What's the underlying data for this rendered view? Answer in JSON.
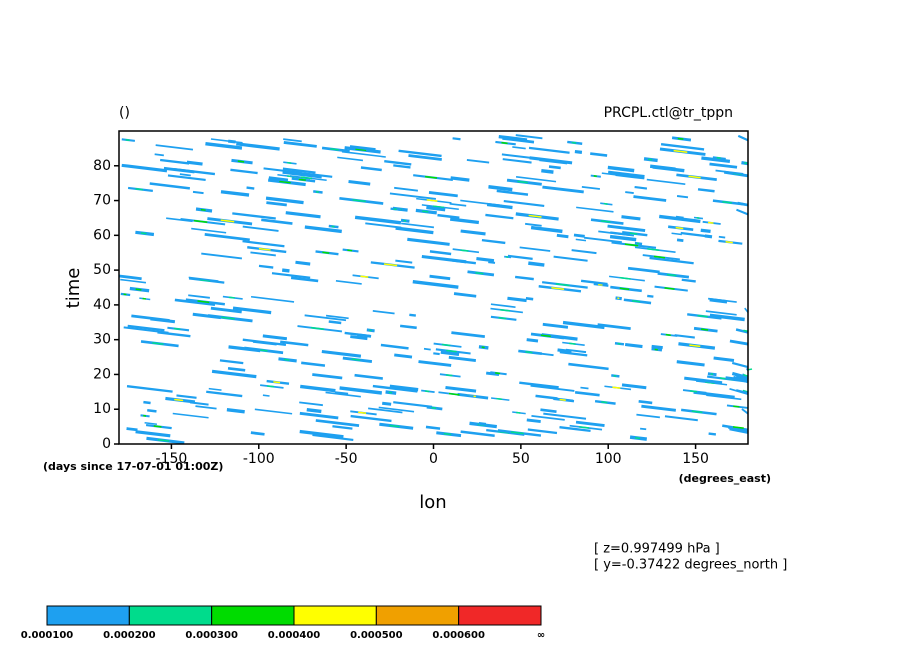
{
  "chart_data": {
    "type": "contourf",
    "title": "()",
    "subtitle": "PRCPL.ctl@tr_tppn",
    "x_label": "lon",
    "y_label": "time",
    "x_units": "(degrees_east)",
    "y_units": "(days since 17-07-01 01:00Z)",
    "annotations": [
      "[ z=0.997499 hPa ]",
      "[ y=-0.37422 degrees_north ]"
    ],
    "xlim": [
      -180,
      180
    ],
    "xticks": [
      -150,
      -100,
      -50,
      0,
      50,
      100,
      150
    ],
    "ylim": [
      0,
      90
    ],
    "yticks": [
      0,
      10,
      20,
      30,
      40,
      50,
      60,
      70,
      80
    ],
    "colorbar": {
      "levels": [
        {
          "value": 0.0001,
          "label": "0.000100"
        },
        {
          "value": 0.0002,
          "label": "0.000200"
        },
        {
          "value": 0.0003,
          "label": "0.000300"
        },
        {
          "value": 0.0004,
          "label": "0.000400"
        },
        {
          "value": 0.0005,
          "label": "0.000500"
        },
        {
          "value": 0.0006,
          "label": "0.000600"
        }
      ],
      "end_label": "∞",
      "colors": [
        "#1ea0f0",
        "#00dc8c",
        "#00dc00",
        "#ffff00",
        "#f0a000",
        "#f02828"
      ]
    }
  }
}
